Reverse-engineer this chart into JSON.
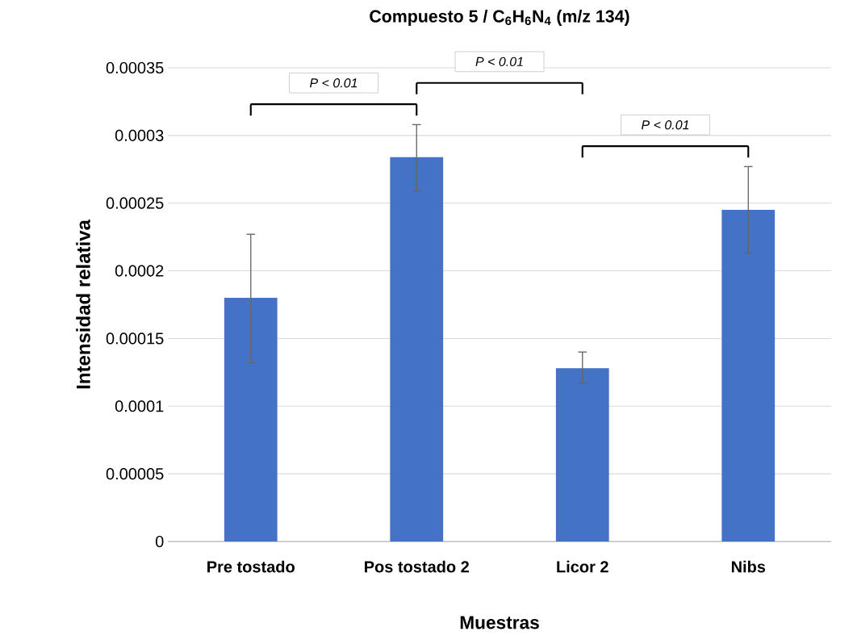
{
  "chart_data": {
    "type": "bar",
    "title": "Compuesto 5 / C$_{6}$H$_{6}$N$_{4}$  (m/z  134)",
    "xlabel": "Muestras",
    "ylabel": "Intensidad relativa",
    "categories": [
      "Pre tostado",
      "Pos tostado 2",
      "Licor 2",
      "Nibs"
    ],
    "values": [
      0.00018,
      0.000284,
      0.000128,
      0.000245
    ],
    "errors": [
      [
        0.000132,
        0.000227
      ],
      [
        0.000259,
        0.000308
      ],
      [
        0.000117,
        0.00014
      ],
      [
        0.000213,
        0.000277
      ]
    ],
    "color": "#4472c4",
    "ylim": [
      0,
      0.00035
    ],
    "yticks": [
      0,
      {
        "value": 5e-05,
        "label": "0.00005"
      },
      0.0001,
      0.00015,
      0.0002,
      0.00025,
      0.0003,
      0.00035
    ],
    "grid": "y",
    "annotations": [
      "P < 0.01",
      "P < 0.01",
      "P < 0.01"
    ]
  }
}
